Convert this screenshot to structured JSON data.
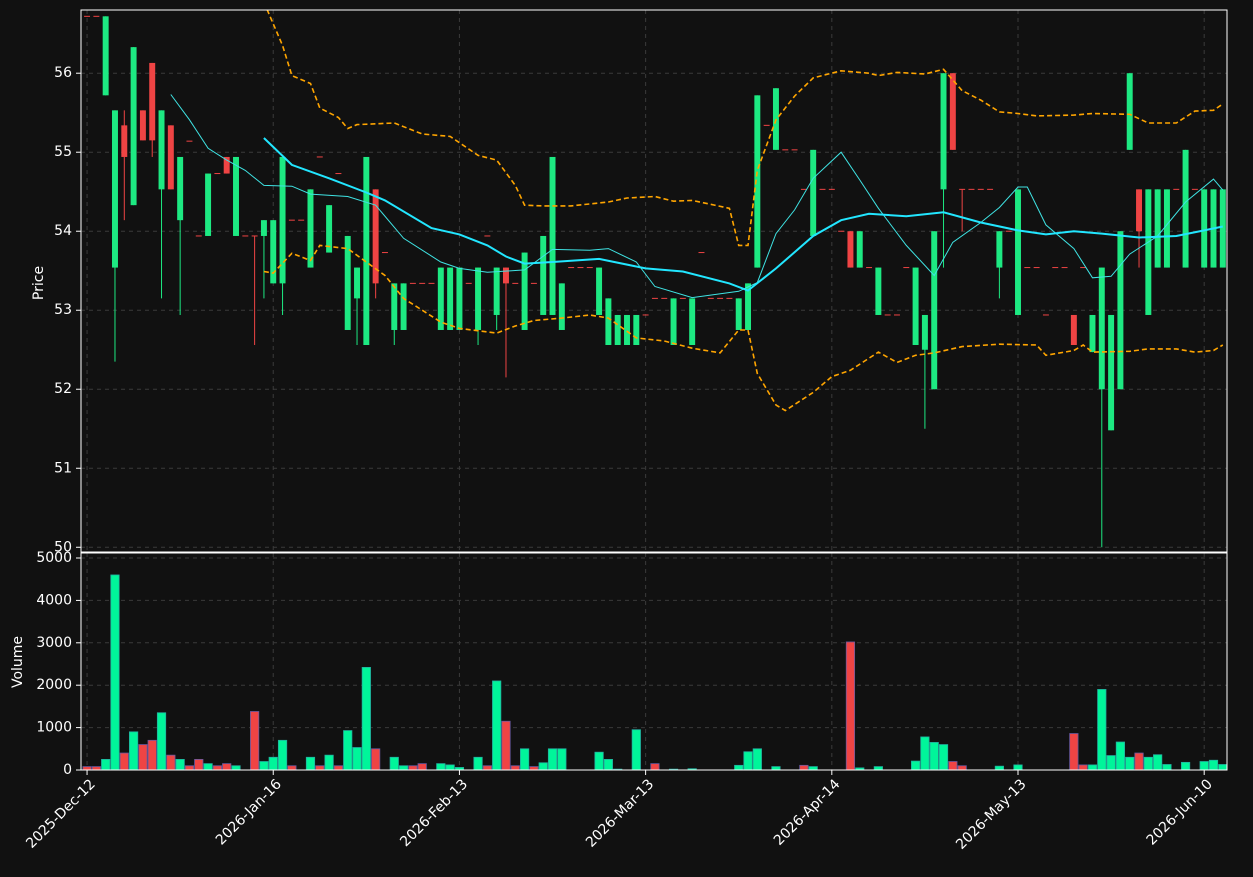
{
  "chart_data": {
    "type": "candlestick",
    "ylabel": "Price",
    "volume_label": "Volume",
    "up_color": "#1de982",
    "down_color": "#ef4444",
    "volume_up_color": "#00f59a",
    "volume_down_color": "#ef4444",
    "grid": true,
    "categories": [
      "2025-Dec-12",
      null,
      null,
      null,
      null,
      null,
      null,
      null,
      null,
      null,
      null,
      null,
      null,
      null,
      null,
      null,
      null,
      null,
      null,
      null,
      "2026-Jan-16",
      null,
      null,
      null,
      null,
      null,
      null,
      null,
      null,
      null,
      null,
      null,
      null,
      null,
      null,
      null,
      null,
      null,
      null,
      null,
      "2026-Feb-13",
      null,
      null,
      null,
      null,
      null,
      null,
      null,
      null,
      null,
      null,
      null,
      null,
      null,
      null,
      null,
      null,
      null,
      null,
      null,
      "2026-Mar-13",
      null,
      null,
      null,
      null,
      null,
      null,
      null,
      null,
      null,
      null,
      null,
      null,
      null,
      null,
      null,
      null,
      null,
      null,
      null,
      "2026-Apr-14",
      null,
      null,
      null,
      null,
      null,
      null,
      null,
      null,
      null,
      null,
      null,
      null,
      null,
      null,
      null,
      null,
      null,
      null,
      null,
      "2026-May-13",
      null,
      null,
      null,
      null,
      null,
      null,
      null,
      null,
      null,
      null,
      null,
      null,
      null,
      null,
      null,
      null,
      null,
      null,
      null,
      "2026-Jun-10",
      null,
      null
    ],
    "xlim": [
      -0.65,
      122.45
    ],
    "open": [
      56.72,
      56.72,
      55.72,
      53.54,
      55.34,
      54.33,
      55.53,
      56.13,
      54.53,
      55.34,
      54.14,
      55.14,
      53.94,
      53.94,
      54.73,
      54.94,
      53.94,
      53.94,
      53.94,
      53.94,
      53.34,
      53.34,
      54.14,
      54.14,
      53.54,
      54.94,
      53.73,
      54.73,
      52.75,
      53.15,
      52.56,
      54.53,
      53.73,
      52.75,
      52.75,
      53.34,
      53.34,
      53.34,
      52.75,
      52.75,
      52.75,
      53.34,
      52.75,
      53.94,
      52.94,
      53.54,
      53.34,
      52.75,
      53.34,
      52.94,
      52.94,
      52.75,
      53.54,
      53.54,
      53.54,
      52.94,
      52.56,
      52.56,
      52.56,
      52.56,
      52.94,
      53.15,
      53.15,
      52.56,
      53.15,
      52.56,
      53.73,
      53.15,
      53.15,
      53.15,
      52.75,
      52.75,
      53.54,
      55.34,
      55.03,
      55.03,
      55.03,
      54.53,
      53.94,
      54.53,
      54.53,
      54.0,
      54.0,
      53.54,
      53.54,
      52.94,
      52.94,
      52.94,
      53.54,
      52.56,
      52.5,
      52.0,
      54.53,
      56.0,
      54.53,
      54.53,
      54.53,
      54.53,
      53.54,
      54.0,
      52.94,
      53.54,
      53.54,
      52.94,
      53.54,
      53.54,
      52.94,
      53.54,
      52.47,
      52.0,
      51.48,
      52.0,
      55.03,
      54.53,
      52.94,
      53.54,
      53.54,
      54.53,
      53.54,
      54.53,
      53.54,
      53.54,
      53.54
    ],
    "high": [
      56.72,
      56.72,
      56.72,
      55.53,
      55.53,
      56.33,
      55.53,
      56.13,
      55.53,
      55.34,
      54.94,
      55.14,
      53.94,
      54.73,
      54.73,
      54.94,
      54.94,
      53.94,
      53.94,
      54.14,
      54.14,
      54.94,
      54.14,
      54.14,
      54.53,
      54.94,
      54.33,
      54.73,
      53.94,
      53.54,
      54.94,
      54.53,
      53.73,
      53.34,
      53.34,
      53.34,
      53.34,
      53.34,
      53.54,
      53.54,
      53.54,
      53.34,
      53.54,
      53.94,
      53.54,
      53.54,
      53.34,
      53.73,
      53.34,
      53.94,
      54.94,
      53.34,
      53.54,
      53.54,
      53.54,
      53.54,
      53.15,
      52.94,
      52.94,
      52.94,
      52.94,
      53.15,
      53.15,
      53.15,
      53.15,
      53.15,
      53.73,
      53.15,
      53.15,
      53.15,
      53.15,
      53.34,
      55.72,
      55.34,
      55.81,
      55.03,
      55.03,
      54.53,
      55.03,
      54.53,
      54.53,
      54.0,
      54.0,
      54.0,
      53.54,
      53.54,
      52.94,
      52.94,
      53.54,
      53.54,
      52.94,
      54.0,
      56.0,
      56.0,
      54.53,
      54.53,
      54.53,
      54.53,
      54.0,
      54.0,
      54.53,
      53.54,
      53.54,
      52.94,
      53.54,
      53.54,
      52.94,
      53.54,
      52.94,
      53.54,
      52.94,
      54.0,
      56.0,
      54.53,
      54.53,
      54.53,
      54.53,
      54.53,
      55.03,
      54.53,
      54.53,
      54.53,
      54.53
    ],
    "low": [
      56.72,
      56.72,
      55.72,
      52.35,
      54.14,
      54.33,
      55.15,
      54.94,
      53.15,
      54.53,
      52.94,
      55.14,
      53.94,
      53.94,
      54.73,
      54.73,
      53.94,
      53.94,
      52.56,
      53.15,
      53.34,
      52.94,
      54.14,
      54.14,
      53.54,
      54.94,
      53.73,
      54.73,
      52.75,
      52.56,
      52.56,
      53.15,
      53.73,
      52.56,
      52.75,
      53.34,
      53.34,
      53.34,
      52.75,
      52.75,
      52.75,
      53.34,
      52.56,
      53.94,
      52.75,
      52.15,
      53.34,
      52.75,
      53.34,
      52.94,
      52.94,
      52.75,
      53.54,
      53.54,
      53.54,
      52.94,
      52.56,
      52.56,
      52.56,
      52.56,
      52.94,
      53.15,
      53.15,
      52.56,
      53.15,
      52.56,
      53.73,
      53.15,
      53.15,
      53.15,
      52.75,
      52.75,
      53.54,
      55.34,
      55.03,
      55.03,
      55.03,
      54.53,
      53.94,
      54.53,
      54.53,
      54.0,
      53.54,
      53.54,
      53.54,
      52.94,
      52.94,
      52.94,
      53.54,
      52.56,
      51.5,
      52.0,
      53.54,
      55.03,
      54.0,
      54.53,
      54.53,
      54.53,
      53.15,
      54.0,
      52.94,
      53.54,
      53.54,
      52.94,
      53.54,
      53.54,
      52.56,
      53.54,
      52.47,
      50.0,
      51.48,
      52.0,
      55.03,
      53.54,
      52.94,
      53.54,
      53.54,
      54.53,
      53.54,
      54.53,
      53.54,
      53.54,
      53.54
    ],
    "close": [
      56.72,
      56.72,
      56.72,
      55.53,
      54.94,
      56.33,
      55.15,
      55.15,
      55.53,
      54.53,
      54.94,
      55.14,
      53.94,
      54.73,
      54.73,
      54.73,
      54.94,
      53.94,
      53.94,
      54.14,
      54.14,
      54.94,
      54.14,
      54.14,
      54.53,
      54.94,
      54.33,
      54.73,
      53.94,
      53.54,
      54.94,
      53.34,
      53.73,
      53.34,
      53.34,
      53.34,
      53.34,
      53.34,
      53.54,
      53.54,
      53.54,
      53.34,
      53.54,
      53.94,
      53.54,
      53.34,
      53.34,
      53.73,
      53.34,
      53.94,
      54.94,
      53.34,
      53.54,
      53.54,
      53.54,
      53.54,
      53.15,
      52.94,
      52.94,
      52.94,
      52.94,
      53.15,
      53.15,
      53.15,
      53.15,
      53.15,
      53.73,
      53.15,
      53.15,
      53.15,
      53.15,
      53.34,
      55.72,
      55.34,
      55.81,
      55.03,
      55.03,
      54.53,
      55.03,
      54.53,
      54.53,
      54.0,
      53.54,
      54.0,
      53.54,
      53.54,
      52.94,
      52.94,
      53.54,
      53.54,
      52.94,
      54.0,
      56.0,
      55.03,
      54.53,
      54.53,
      54.53,
      54.53,
      54.0,
      54.0,
      54.53,
      53.54,
      53.54,
      52.94,
      53.54,
      53.54,
      52.56,
      53.54,
      52.94,
      53.54,
      52.94,
      54.0,
      56.0,
      54.0,
      54.53,
      54.53,
      54.53,
      54.53,
      55.03,
      54.53,
      54.53,
      54.53,
      54.53
    ],
    "volume": [
      80,
      80,
      250,
      4600,
      400,
      900,
      600,
      700,
      1350,
      350,
      250,
      100,
      250,
      150,
      100,
      150,
      100,
      0,
      1380,
      200,
      300,
      700,
      100,
      0,
      300,
      100,
      350,
      100,
      930,
      530,
      2420,
      500,
      0,
      300,
      100,
      100,
      150,
      0,
      150,
      120,
      60,
      0,
      300,
      100,
      2100,
      1150,
      100,
      500,
      80,
      170,
      500,
      500,
      0,
      0,
      0,
      420,
      250,
      20,
      0,
      950,
      0,
      150,
      0,
      20,
      0,
      30,
      0,
      0,
      0,
      0,
      110,
      430,
      500,
      0,
      80,
      0,
      0,
      110,
      80,
      0,
      0,
      0,
      3020,
      50,
      0,
      80,
      0,
      0,
      0,
      210,
      780,
      650,
      600,
      200,
      100,
      0,
      0,
      0,
      90,
      0,
      120,
      0,
      0,
      0,
      0,
      0,
      860,
      120,
      120,
      1900,
      340,
      660,
      300,
      400,
      300,
      360,
      130,
      0,
      180,
      0,
      200,
      230,
      130
    ],
    "ylim": [
      49.94,
      56.8
    ],
    "yticks": [
      50,
      51,
      52,
      53,
      54,
      55,
      56
    ],
    "volume_ylim": [
      0,
      5118
    ],
    "volume_yticks": [
      0,
      1000,
      2000,
      3000,
      4000,
      5000
    ],
    "overlays": [
      {
        "color": "#3fe3e3",
        "width": 1,
        "dash": false,
        "x": [
          9,
          11,
          13,
          15,
          17,
          19,
          22,
          24,
          28,
          31,
          34,
          38,
          40,
          43,
          47,
          50,
          54,
          56,
          59,
          61,
          65,
          70,
          72,
          74,
          76,
          78,
          81,
          83,
          85,
          88,
          91,
          93,
          96,
          98,
          100,
          101,
          103,
          106,
          108,
          110,
          112,
          115,
          118,
          121,
          122
        ],
        "values": [
          55.73,
          55.41,
          55.05,
          54.9,
          54.77,
          54.58,
          54.57,
          54.47,
          54.44,
          54.33,
          53.91,
          53.61,
          53.53,
          53.48,
          53.51,
          53.77,
          53.76,
          53.78,
          53.61,
          53.3,
          53.16,
          53.24,
          53.35,
          53.97,
          54.27,
          54.67,
          55.0,
          54.65,
          54.29,
          53.82,
          53.44,
          53.86,
          54.11,
          54.3,
          54.56,
          54.56,
          54.08,
          53.78,
          53.41,
          53.43,
          53.71,
          53.94,
          54.37,
          54.66,
          54.52
        ]
      },
      {
        "color": "#22e6ff",
        "width": 2,
        "dash": false,
        "x": [
          19,
          22,
          26,
          30,
          32,
          37,
          40,
          43,
          45,
          47,
          50,
          55,
          60,
          64,
          69,
          71,
          74,
          78,
          81,
          84,
          88,
          92,
          96,
          100,
          103,
          106,
          109,
          113,
          117,
          120,
          122
        ],
        "values": [
          55.18,
          54.84,
          54.67,
          54.49,
          54.39,
          54.04,
          53.96,
          53.82,
          53.68,
          53.59,
          53.61,
          53.65,
          53.53,
          53.49,
          53.34,
          53.25,
          53.53,
          53.94,
          54.14,
          54.22,
          54.19,
          54.24,
          54.11,
          54.01,
          53.96,
          54.0,
          53.97,
          53.92,
          53.94,
          54.01,
          54.06
        ]
      },
      {
        "color": "#ffa500",
        "width": 1.6,
        "dash": true,
        "x": [
          19,
          21,
          22,
          24,
          25,
          27,
          28,
          29,
          33,
          36,
          39,
          42,
          44,
          46,
          47,
          49,
          52,
          56,
          58,
          61,
          63,
          65,
          69,
          70,
          71,
          72,
          74,
          76,
          78,
          81,
          84,
          85,
          87,
          90,
          92,
          94,
          96,
          98,
          100,
          102,
          106,
          108,
          112,
          114,
          117,
          119,
          121,
          122
        ],
        "values": [
          56.9,
          56.35,
          55.97,
          55.87,
          55.56,
          55.44,
          55.3,
          55.35,
          55.37,
          55.23,
          55.2,
          54.96,
          54.9,
          54.58,
          54.33,
          54.32,
          54.32,
          54.37,
          54.42,
          54.44,
          54.38,
          54.39,
          54.29,
          53.82,
          53.82,
          54.77,
          55.41,
          55.71,
          55.94,
          56.03,
          56.0,
          55.97,
          56.01,
          55.99,
          56.05,
          55.78,
          55.66,
          55.51,
          55.49,
          55.46,
          55.47,
          55.49,
          55.48,
          55.37,
          55.37,
          55.52,
          55.53,
          55.61
        ]
      },
      {
        "color": "#ffa500",
        "width": 1.6,
        "dash": true,
        "x": [
          19,
          20,
          22,
          24,
          25,
          28,
          30,
          32,
          34,
          36,
          38,
          40,
          44,
          46,
          48,
          51,
          54,
          56,
          59,
          62,
          65,
          68,
          70,
          71,
          72,
          74,
          75,
          78,
          80,
          82,
          85,
          87,
          89,
          91,
          94,
          98,
          102,
          103,
          106,
          107,
          108,
          112,
          114,
          117,
          119,
          121,
          122
        ],
        "values": [
          53.49,
          53.47,
          53.72,
          53.63,
          53.82,
          53.78,
          53.61,
          53.44,
          53.15,
          53.0,
          52.85,
          52.77,
          52.71,
          52.8,
          52.87,
          52.9,
          52.94,
          52.9,
          52.65,
          52.61,
          52.52,
          52.46,
          52.75,
          52.75,
          52.2,
          51.8,
          51.73,
          51.96,
          52.16,
          52.24,
          52.47,
          52.34,
          52.43,
          52.46,
          52.54,
          52.57,
          52.56,
          52.43,
          52.49,
          52.56,
          52.47,
          52.48,
          52.51,
          52.51,
          52.47,
          52.49,
          52.56
        ]
      }
    ]
  }
}
